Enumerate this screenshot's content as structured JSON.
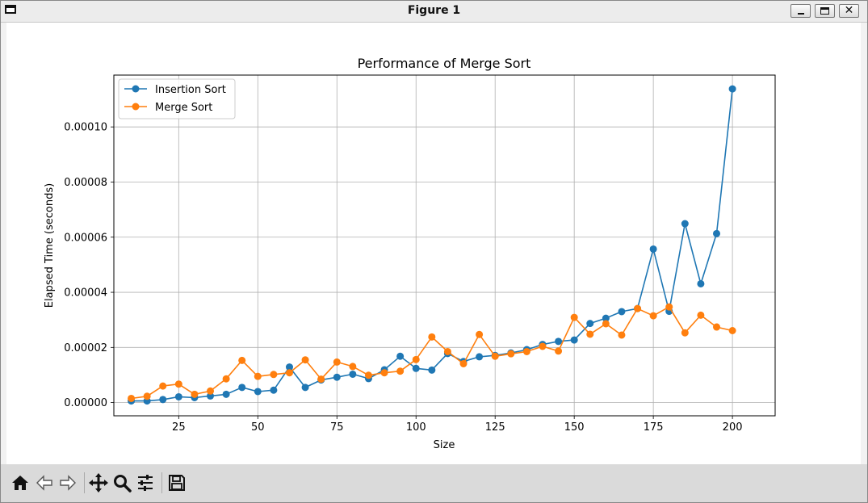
{
  "window": {
    "title": "Figure 1"
  },
  "toolbar": {
    "tools": [
      "home-icon",
      "back-icon",
      "forward-icon",
      "pan-icon",
      "zoom-icon",
      "configure-subplots-icon",
      "save-icon"
    ]
  },
  "colors": {
    "insertion": "#1f77b4",
    "merge": "#ff7f0e",
    "grid": "#b0b0b0"
  },
  "chart_data": {
    "type": "line",
    "title": "Performance of Merge Sort",
    "xlabel": "Size",
    "ylabel": "Elapsed Time (seconds)",
    "xlim": [
      4.5,
      213.5
    ],
    "ylim": [
      -4.8e-06,
      0.0001188
    ],
    "xticks": [
      25,
      50,
      75,
      100,
      125,
      150,
      175,
      200
    ],
    "xtick_labels": [
      "25",
      "50",
      "75",
      "100",
      "125",
      "150",
      "175",
      "200"
    ],
    "yticks": [
      0,
      2e-05,
      4e-05,
      6e-05,
      8e-05,
      0.0001
    ],
    "ytick_labels": [
      "0.00000",
      "0.00002",
      "0.00004",
      "0.00006",
      "0.00008",
      "0.00010"
    ],
    "grid": true,
    "legend_position": "top-left",
    "x": [
      10,
      15,
      20,
      25,
      30,
      35,
      40,
      45,
      50,
      55,
      60,
      65,
      70,
      75,
      80,
      85,
      90,
      95,
      100,
      105,
      110,
      115,
      120,
      125,
      130,
      135,
      140,
      145,
      150,
      155,
      160,
      165,
      170,
      175,
      180,
      185,
      190,
      195,
      200
    ],
    "series": [
      {
        "name": "Insertion Sort",
        "values": [
          6e-07,
          6e-07,
          1.1e-06,
          2.1e-06,
          1.8e-06,
          2.4e-06,
          3e-06,
          5.5e-06,
          4e-06,
          4.5e-06,
          1.29e-05,
          5.5e-06,
          8.2e-06,
          9.2e-06,
          1.03e-05,
          8.7e-06,
          1.19e-05,
          1.68e-05,
          1.24e-05,
          1.18e-05,
          1.78e-05,
          1.49e-05,
          1.66e-05,
          1.71e-05,
          1.8e-05,
          1.92e-05,
          2.11e-05,
          2.22e-05,
          2.27e-05,
          2.87e-05,
          3.06e-05,
          3.3e-05,
          3.41e-05,
          5.57e-05,
          3.31e-05,
          6.49e-05,
          4.31e-05,
          6.13e-05,
          0.0001138
        ]
      },
      {
        "name": "Merge Sort",
        "values": [
          1.5e-06,
          2.3e-06,
          6e-06,
          6.7e-06,
          3e-06,
          4.2e-06,
          8.6e-06,
          1.53e-05,
          9.5e-06,
          1.02e-05,
          1.08e-05,
          1.55e-05,
          8.5e-06,
          1.47e-05,
          1.31e-05,
          9.9e-06,
          1.08e-05,
          1.14e-05,
          1.56e-05,
          2.38e-05,
          1.85e-05,
          1.41e-05,
          2.47e-05,
          1.68e-05,
          1.77e-05,
          1.85e-05,
          2.04e-05,
          1.87e-05,
          3.09e-05,
          2.48e-05,
          2.86e-05,
          2.45e-05,
          3.41e-05,
          3.15e-05,
          3.47e-05,
          2.53e-05,
          3.17e-05,
          2.74e-05,
          2.61e-05
        ]
      }
    ]
  }
}
